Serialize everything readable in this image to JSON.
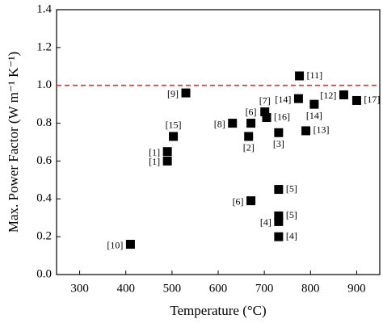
{
  "chart_data": {
    "type": "scatter",
    "xlabel": "Temperature (°C)",
    "ylabel": "Max. Power Factor (W m⁻¹ K⁻¹)",
    "x": [
      410,
      490,
      490,
      503,
      530,
      631,
      666,
      671,
      671,
      701,
      705,
      731,
      731,
      731,
      731,
      731,
      776,
      774,
      808,
      790,
      872,
      900
    ],
    "series": [
      {
        "color": "#000000",
        "values": [
          0.16,
          0.65,
          0.6,
          0.73,
          0.96,
          0.8,
          0.73,
          0.8,
          0.39,
          0.86,
          0.83,
          0.75,
          0.45,
          0.31,
          0.28,
          0.2,
          1.05,
          0.93,
          0.9,
          0.76,
          0.95,
          0.92
        ],
        "labels": [
          "[10]",
          "[1]",
          "[1]",
          "[15]",
          "[9]",
          "[8]",
          "[2]",
          "[6]",
          "[6]",
          "[7]",
          "[16]",
          "[3]",
          "[5]",
          "[5]",
          "[4]",
          "[4]",
          "[11]",
          "[14]",
          "[14]",
          "[13]",
          "[12]",
          "[17]"
        ]
      }
    ],
    "hline": {
      "value": 1.0,
      "color": "#e8282d"
    },
    "xlim": [
      250,
      950
    ],
    "xticks": [
      300,
      400,
      500,
      600,
      700,
      800,
      900
    ],
    "ylim": [
      0,
      1.4
    ],
    "yticks": [
      {
        "value": 0,
        "label": "0.0"
      },
      {
        "value": 0.2,
        "label": "0.2"
      },
      {
        "value": 0.4,
        "label": "0.4"
      },
      {
        "value": 0.6,
        "label": "0.6"
      },
      {
        "value": 0.8,
        "label": "0.8"
      },
      {
        "value": 1.0,
        "label": "1.0"
      },
      {
        "value": 1.2,
        "label": "1.2"
      },
      {
        "value": 1.4,
        "label": "1.4"
      }
    ]
  }
}
